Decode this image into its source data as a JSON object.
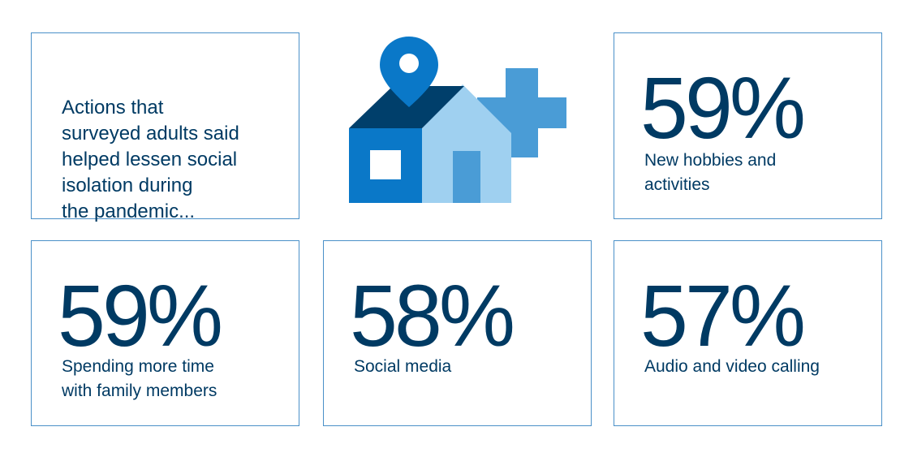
{
  "intro": {
    "text": "Actions that\nsurveyed adults said\nhelped lessen social\nisolation during\nthe pandemic..."
  },
  "illustration": {
    "icon": "house-with-location-pin-and-plus-icon",
    "colors": {
      "roof_dark": "#003f6b",
      "house_front": "#0a78c8",
      "house_side": "#9fd0f0",
      "door": "#4a9cd6",
      "plus": "#4a9cd6",
      "pin": "#0a78c8"
    }
  },
  "stats": [
    {
      "value": "59%",
      "label": "New hobbies and\nactivities"
    },
    {
      "value": "59%",
      "label": "Spending more time\nwith family members"
    },
    {
      "value": "58%",
      "label": "Social media"
    },
    {
      "value": "57%",
      "label": "Audio and video calling"
    }
  ],
  "colors": {
    "text": "#003a63",
    "border": "#4a90c8",
    "background": "#ffffff"
  }
}
